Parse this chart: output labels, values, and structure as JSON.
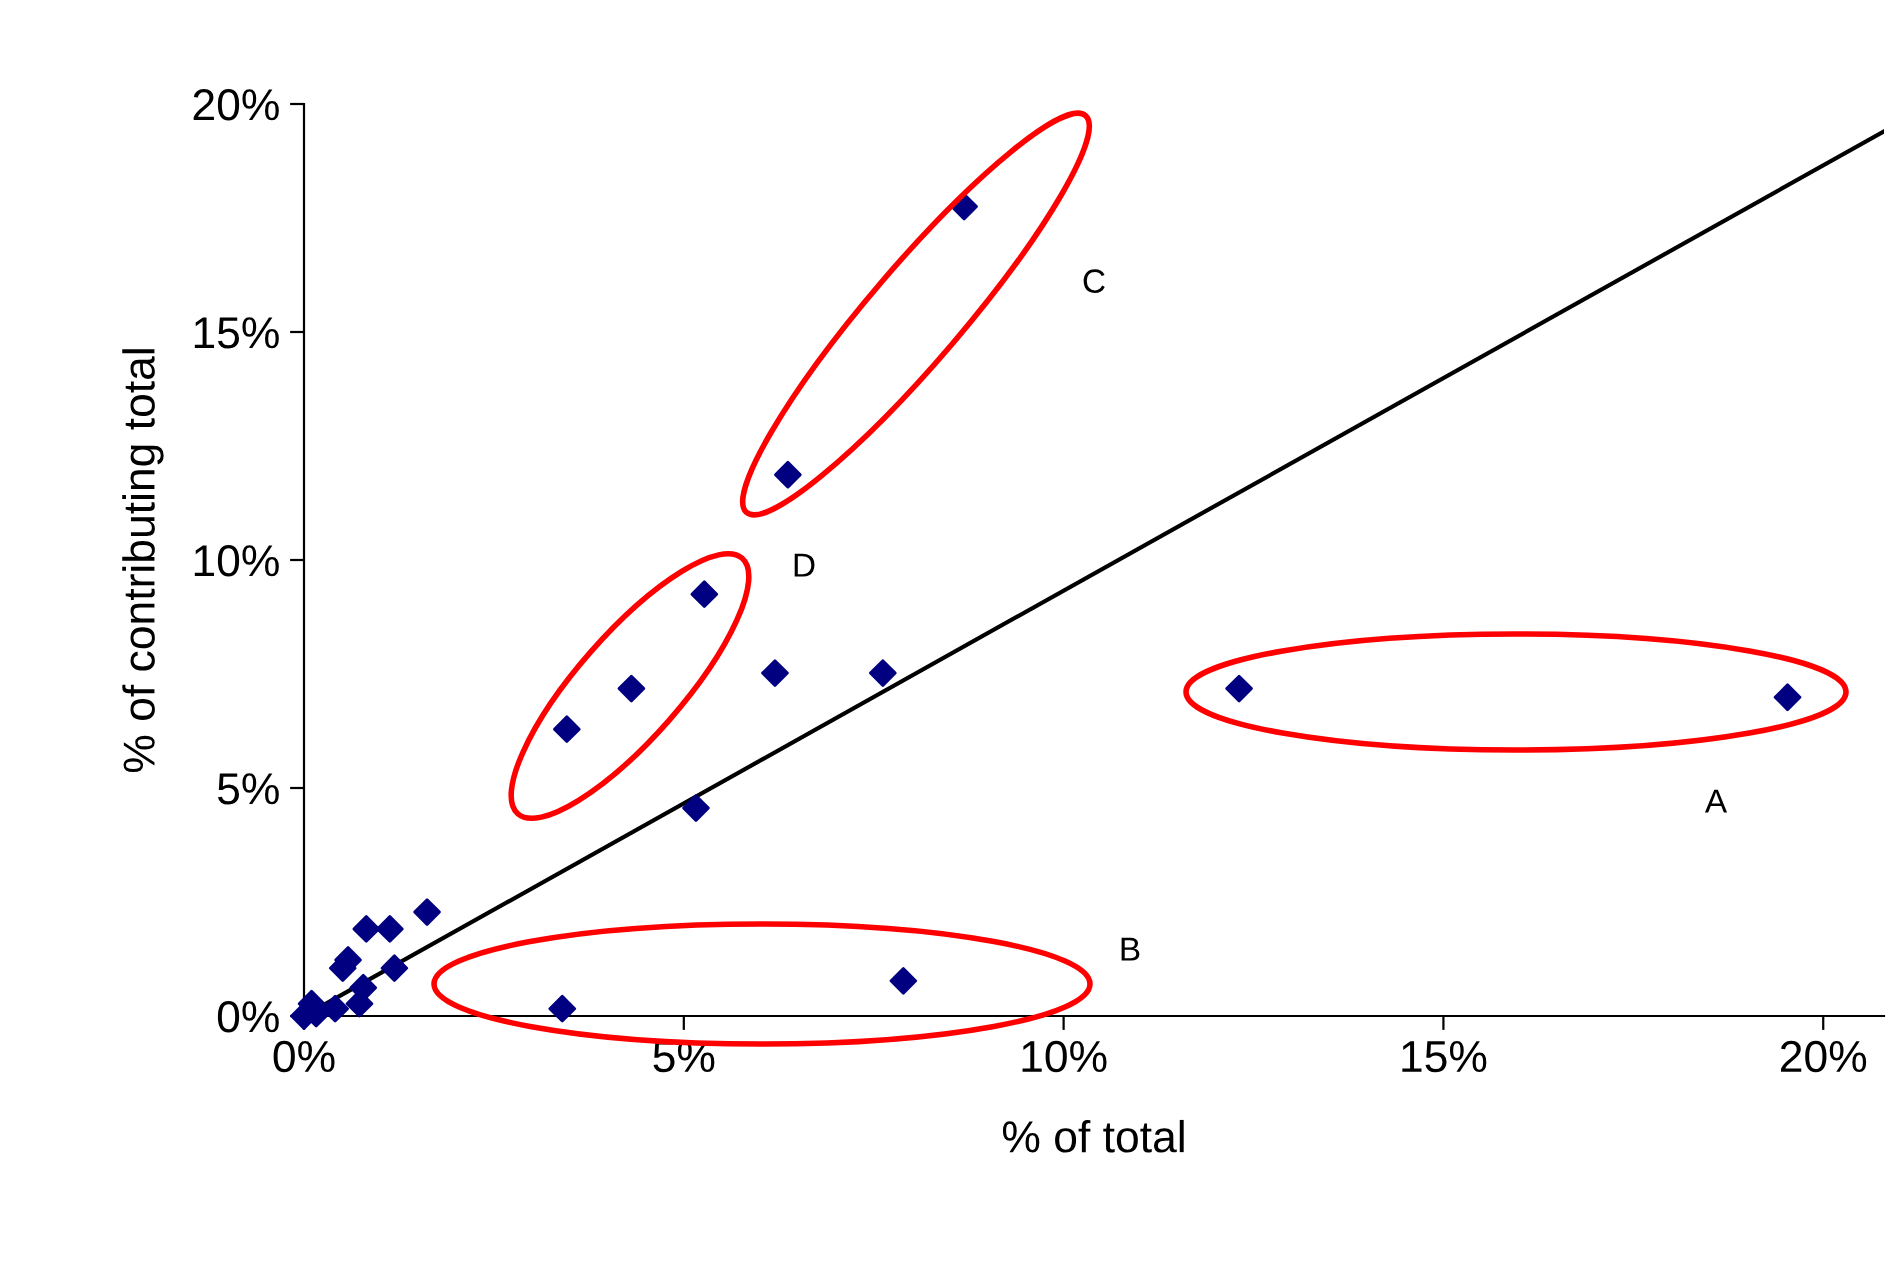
{
  "chart_data": {
    "type": "scatter",
    "xlabel": "% of total",
    "ylabel": "% of contributing total",
    "xlim": [
      0,
      20.8
    ],
    "ylim": [
      0,
      20
    ],
    "xticks": [
      {
        "value": 0,
        "label": "0%"
      },
      {
        "value": 5,
        "label": "5%"
      },
      {
        "value": 10,
        "label": "10%"
      },
      {
        "value": 15,
        "label": "15%"
      },
      {
        "value": 20,
        "label": "20%"
      }
    ],
    "yticks": [
      {
        "value": 0,
        "label": "0%"
      },
      {
        "value": 5,
        "label": "5%"
      },
      {
        "value": 10,
        "label": "10%"
      },
      {
        "value": 15,
        "label": "15%"
      },
      {
        "value": 20,
        "label": "20%"
      }
    ],
    "grid": false,
    "marker": "diamond",
    "series": [
      {
        "color": "#000080",
        "x": [
          8.69,
          6.37,
          5.27,
          4.31,
          3.46,
          6.2,
          7.62,
          12.31,
          19.53,
          5.16,
          7.89,
          3.4,
          1.62,
          1.13,
          0.82,
          0.58,
          0.51,
          1.19,
          0.78,
          0.73,
          0.41,
          0.1,
          0,
          0.16
        ],
        "values": [
          17.75,
          11.87,
          9.25,
          7.18,
          6.29,
          7.52,
          7.52,
          7.18,
          6.99,
          4.56,
          0.77,
          0.16,
          2.28,
          1.91,
          1.91,
          1.23,
          1.05,
          1.05,
          0.62,
          0.27,
          0.16,
          0.27,
          0,
          0.05
        ]
      },
      {
        "type": "line",
        "color": "#000000",
        "marker": "none",
        "x": [
          0,
          20.8
        ],
        "values": [
          0,
          19.4
        ]
      }
    ],
    "annotations": [
      "A",
      "B",
      "C",
      "D"
    ]
  }
}
